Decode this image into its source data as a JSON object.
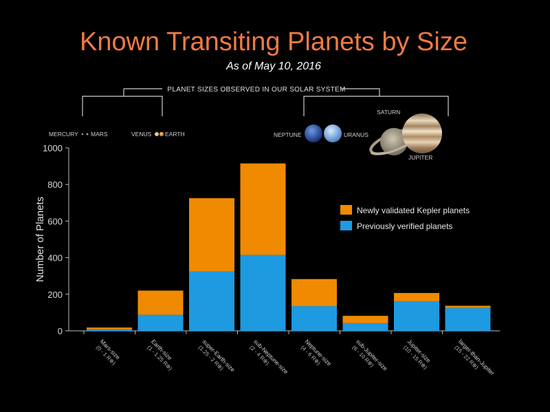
{
  "chart_data": {
    "type": "bar",
    "stacked": true,
    "title": "Known Transiting Planets by Size",
    "subtitle": "As of May 10, 2016",
    "ylabel": "Number of Planets",
    "xlabel": "",
    "ylim": [
      0,
      1000
    ],
    "yticks": [
      0,
      200,
      400,
      600,
      800,
      1000
    ],
    "grid": false,
    "legend_position": "right",
    "categories": [
      "Mars-size",
      "Earth-size",
      "super-Earth-size",
      "sub-Neptune-size",
      "Neptune-size",
      "sub-Jupiter-size",
      "Jupiter-size",
      "larger-than-Jupiter"
    ],
    "category_ranges": [
      "(0 - 1 R⊕)",
      "(1 - 1.25 R⊕)",
      "(1.25 - 2 R⊕)",
      "(2 - 4 R⊕)",
      "(4 - 6 R⊕)",
      "(6 - 10 R⊕)",
      "(10 - 15 R⊕)",
      "(15 - 22 R⊕)"
    ],
    "series": [
      {
        "name": "Previously verified planets",
        "color": "#1e9ae0",
        "values": [
          8,
          88,
          325,
          415,
          135,
          42,
          162,
          125
        ]
      },
      {
        "name": "Newly validated Kepler planets",
        "color": "#f08a00",
        "values": [
          10,
          132,
          400,
          500,
          148,
          40,
          45,
          12
        ]
      }
    ]
  },
  "solar_system": {
    "header": "PLANET SIZES OBSERVED IN OUR SOLAR SYSTEM",
    "mercury": "MERCURY",
    "mars": "MARS",
    "venus": "VENUS",
    "earth": "EARTH",
    "neptune": "NEPTUNE",
    "uranus": "URANUS",
    "saturn": "SATURN",
    "jupiter": "JUPITER"
  },
  "colors": {
    "title": "#f07a45",
    "axis": "#bbbbbb",
    "text": "#d8d8d8"
  }
}
